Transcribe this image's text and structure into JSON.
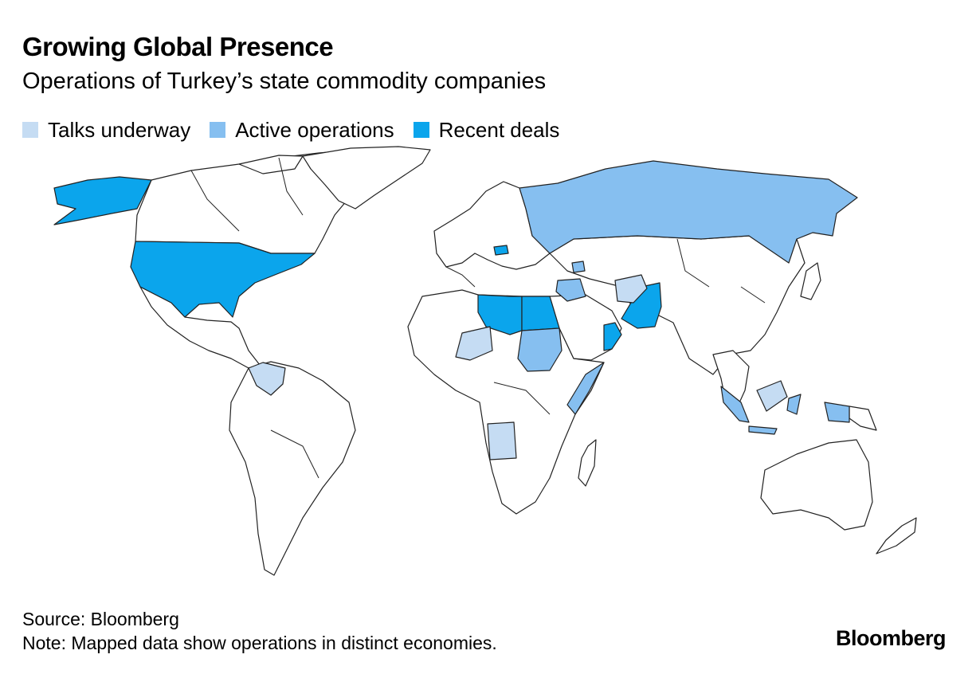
{
  "header": {
    "title": "Growing Global Presence",
    "subtitle": "Operations of Turkey’s state commodity companies"
  },
  "legend": [
    {
      "label": "Talks underway",
      "color": "#c5dcf3"
    },
    {
      "label": "Active operations",
      "color": "#86bff0"
    },
    {
      "label": "Recent deals",
      "color": "#0ba5ec"
    }
  ],
  "map": {
    "base_color": "#ffffff",
    "border_color": "#222222",
    "talks_underway": [
      "Niger",
      "Venezuela",
      "Angola",
      "Afghanistan",
      "Malaysia"
    ],
    "active_operations": [
      "Russia",
      "Sudan",
      "Somalia",
      "Iraq",
      "Azerbaijan",
      "Indonesia"
    ],
    "recent_deals": [
      "United States",
      "Libya",
      "Egypt",
      "Pakistan",
      "Oman",
      "Hungary"
    ]
  },
  "footer": {
    "source": "Source: Bloomberg",
    "note": "Note: Mapped data show operations in distinct economies."
  },
  "logo": "Bloomberg"
}
